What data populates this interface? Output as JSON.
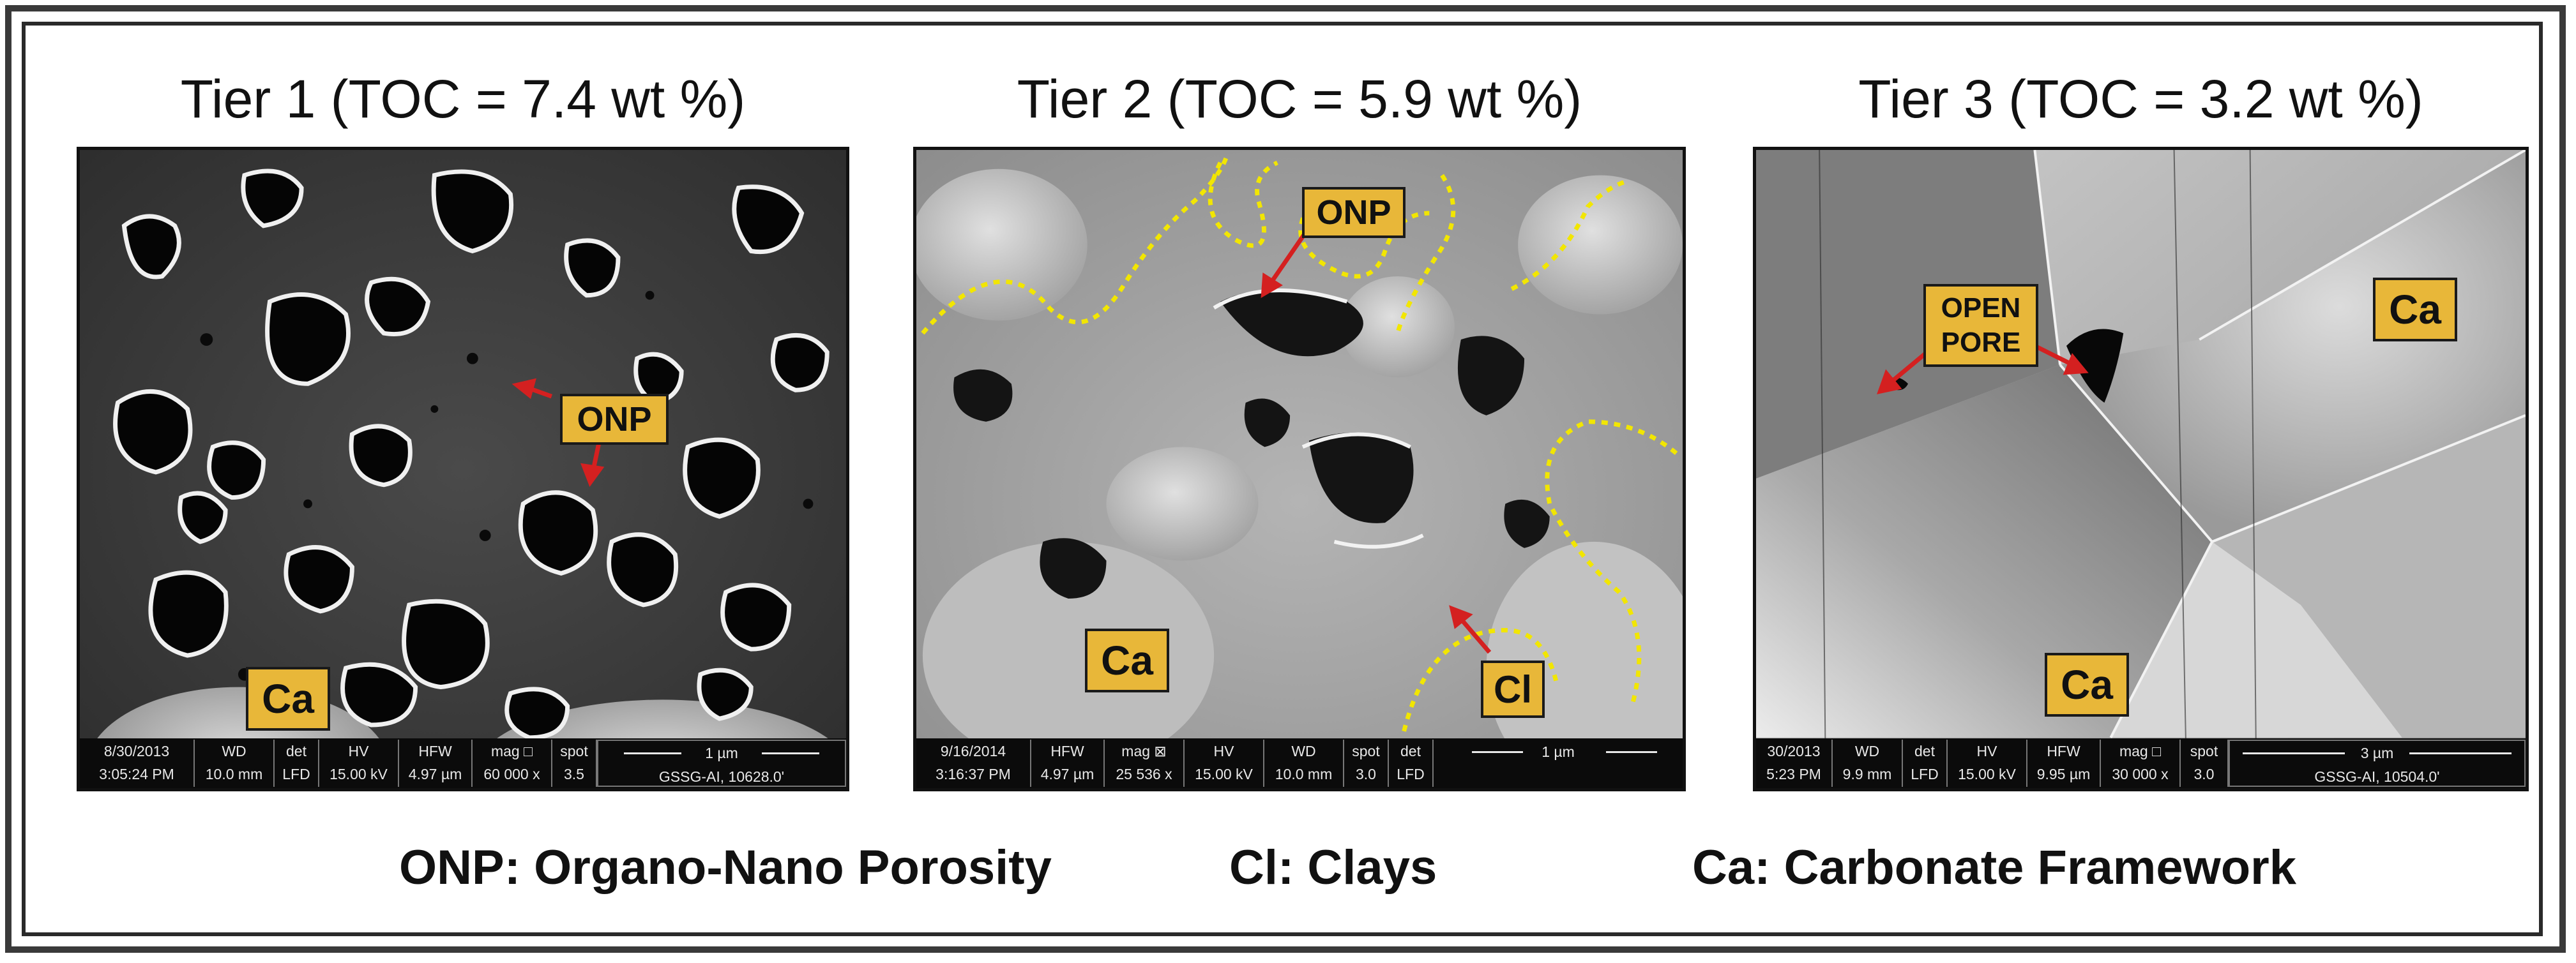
{
  "titles": {
    "tier1": "Tier 1 (TOC = 7.4 wt %)",
    "tier2": "Tier 2 (TOC = 5.9 wt %)",
    "tier3": "Tier 3 (TOC = 3.2 wt %)"
  },
  "panel1": {
    "labels": {
      "onp": "ONP",
      "ca": "Ca"
    },
    "databar": {
      "date": "8/30/2013",
      "time": "3:05:24 PM",
      "wd_h": "WD",
      "wd": "10.0 mm",
      "det_h": "det",
      "det": "LFD",
      "hv_h": "HV",
      "hv": "15.00 kV",
      "hfw_h": "HFW",
      "hfw": "4.97 µm",
      "mag_h": "mag □",
      "mag": "60 000 x",
      "spot_h": "spot",
      "spot": "3.5",
      "scale": "1 µm",
      "sample": "GSSG-AI, 10628.0'"
    }
  },
  "panel2": {
    "labels": {
      "onp": "ONP",
      "ca": "Ca",
      "cl": "Cl"
    },
    "databar": {
      "date": "9/16/2014",
      "time": "3:16:37 PM",
      "hfw_h": "HFW",
      "hfw": "4.97 µm",
      "mag_h": "mag ⊠",
      "mag": "25 536 x",
      "hv_h": "HV",
      "hv": "15.00 kV",
      "wd_h": "WD",
      "wd": "10.0 mm",
      "spot_h": "spot",
      "spot": "3.0",
      "det_h": "det",
      "det": "LFD",
      "scale": "1 µm"
    }
  },
  "panel3": {
    "labels": {
      "open_pore_1": "OPEN",
      "open_pore_2": "PORE",
      "ca_top": "Ca",
      "ca_bottom": "Ca"
    },
    "databar": {
      "date": "30/2013",
      "time": "5:23 PM",
      "wd_h": "WD",
      "wd": "9.9 mm",
      "det_h": "det",
      "det": "LFD",
      "hv_h": "HV",
      "hv": "15.00 kV",
      "hfw_h": "HFW",
      "hfw": "9.95 µm",
      "mag_h": "mag □",
      "mag": "30 000 x",
      "spot_h": "spot",
      "spot": "3.0",
      "scale": "3 µm",
      "sample": "GSSG-AI, 10504.0'"
    }
  },
  "legend": {
    "onp": "ONP: Organo-Nano Porosity",
    "cl": "Cl: Clays",
    "ca": "Ca: Carbonate Framework"
  },
  "colors": {
    "label_fill": "#e8b739",
    "arrow": "#d42020",
    "boundary": "#f2e600"
  }
}
